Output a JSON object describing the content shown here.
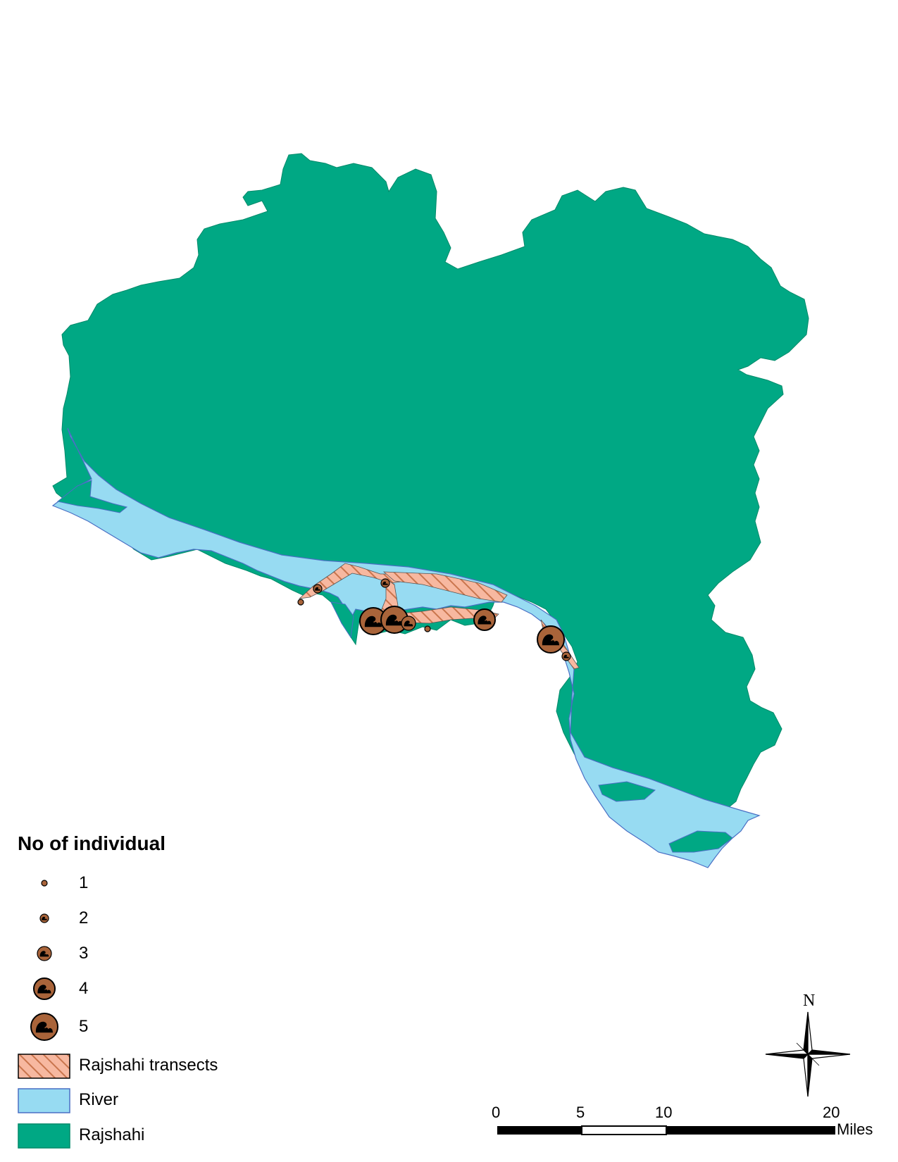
{
  "legend": {
    "title": "No of individual",
    "counts": [
      {
        "label": "1",
        "value": 1
      },
      {
        "label": "2",
        "value": 2
      },
      {
        "label": "3",
        "value": 3
      },
      {
        "label": "4",
        "value": 4
      },
      {
        "label": "5",
        "value": 5
      }
    ],
    "layers": [
      {
        "label": "Rajshahi transects",
        "symbol": "hatched-fill"
      },
      {
        "label": "River",
        "symbol": "solid-fill"
      },
      {
        "label": "Rajshahi",
        "symbol": "solid-fill"
      }
    ]
  },
  "scale_bar": {
    "ticks": [
      "0",
      "5",
      "10",
      "20"
    ],
    "unit": "Miles"
  },
  "north_arrow": {
    "label": "N",
    "icon": "compass-rose-icon"
  },
  "colors": {
    "land": "#00a884",
    "river": "#97dbf2",
    "river_outline": "#4a6fc4",
    "transect": "#f7b8a0",
    "transect_hatch": "#c9754d",
    "marker_fill": "#a9643a",
    "marker_outline": "#000000"
  },
  "observations": [
    {
      "count": 1
    },
    {
      "count": 2
    },
    {
      "count": 2
    },
    {
      "count": 5
    },
    {
      "count": 5
    },
    {
      "count": 3
    },
    {
      "count": 1
    },
    {
      "count": 4
    },
    {
      "count": 5
    },
    {
      "count": 2
    }
  ]
}
